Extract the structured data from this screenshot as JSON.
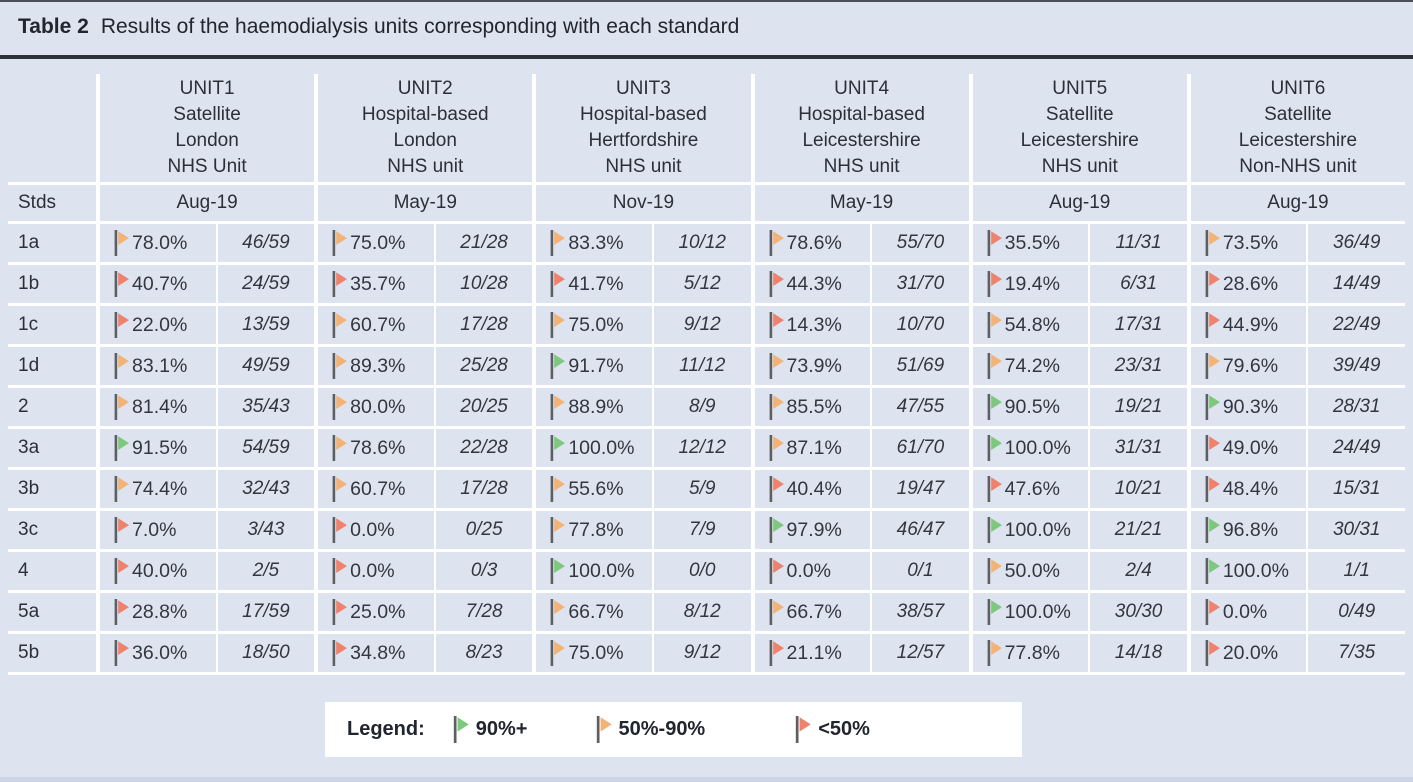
{
  "title": {
    "tag": "Table 2",
    "text": "Results of the haemodialysis units corresponding with each standard"
  },
  "stds_header": "Stds",
  "units": [
    {
      "header": "UNIT1\nSatellite\nLondon\nNHS Unit",
      "date": "Aug-19"
    },
    {
      "header": "UNIT2\nHospital-based\nLondon\nNHS unit",
      "date": "May-19"
    },
    {
      "header": "UNIT3\nHospital-based\nHertfordshire\nNHS unit",
      "date": "Nov-19"
    },
    {
      "header": "UNIT4\nHospital-based\nLeicestershire\nNHS unit",
      "date": "May-19"
    },
    {
      "header": "UNIT5\nSatellite\nLeicestershire\nNHS unit",
      "date": "Aug-19"
    },
    {
      "header": "UNIT6\nSatellite\nLeicestershire\nNon-NHS unit",
      "date": "Aug-19"
    }
  ],
  "rows": [
    {
      "std": "1a",
      "cells": [
        {
          "flag": "orange",
          "pct": "78.0%",
          "frac": "46/59"
        },
        {
          "flag": "orange",
          "pct": "75.0%",
          "frac": "21/28"
        },
        {
          "flag": "orange",
          "pct": "83.3%",
          "frac": "10/12"
        },
        {
          "flag": "orange",
          "pct": "78.6%",
          "frac": "55/70"
        },
        {
          "flag": "red",
          "pct": "35.5%",
          "frac": "11/31"
        },
        {
          "flag": "orange",
          "pct": "73.5%",
          "frac": "36/49"
        }
      ]
    },
    {
      "std": "1b",
      "cells": [
        {
          "flag": "red",
          "pct": "40.7%",
          "frac": "24/59"
        },
        {
          "flag": "red",
          "pct": "35.7%",
          "frac": "10/28"
        },
        {
          "flag": "red",
          "pct": "41.7%",
          "frac": "5/12"
        },
        {
          "flag": "red",
          "pct": "44.3%",
          "frac": "31/70"
        },
        {
          "flag": "red",
          "pct": "19.4%",
          "frac": "6/31"
        },
        {
          "flag": "red",
          "pct": "28.6%",
          "frac": "14/49"
        }
      ]
    },
    {
      "std": "1c",
      "cells": [
        {
          "flag": "red",
          "pct": "22.0%",
          "frac": "13/59"
        },
        {
          "flag": "orange",
          "pct": "60.7%",
          "frac": "17/28"
        },
        {
          "flag": "orange",
          "pct": "75.0%",
          "frac": "9/12"
        },
        {
          "flag": "red",
          "pct": "14.3%",
          "frac": "10/70"
        },
        {
          "flag": "orange",
          "pct": "54.8%",
          "frac": "17/31"
        },
        {
          "flag": "red",
          "pct": "44.9%",
          "frac": "22/49"
        }
      ]
    },
    {
      "std": "1d",
      "cells": [
        {
          "flag": "orange",
          "pct": "83.1%",
          "frac": "49/59"
        },
        {
          "flag": "orange",
          "pct": "89.3%",
          "frac": "25/28"
        },
        {
          "flag": "green",
          "pct": "91.7%",
          "frac": "11/12"
        },
        {
          "flag": "orange",
          "pct": "73.9%",
          "frac": "51/69"
        },
        {
          "flag": "orange",
          "pct": "74.2%",
          "frac": "23/31"
        },
        {
          "flag": "orange",
          "pct": "79.6%",
          "frac": "39/49"
        }
      ]
    },
    {
      "std": "2",
      "cells": [
        {
          "flag": "orange",
          "pct": "81.4%",
          "frac": "35/43"
        },
        {
          "flag": "orange",
          "pct": "80.0%",
          "frac": "20/25"
        },
        {
          "flag": "orange",
          "pct": "88.9%",
          "frac": "8/9"
        },
        {
          "flag": "orange",
          "pct": "85.5%",
          "frac": "47/55"
        },
        {
          "flag": "green",
          "pct": "90.5%",
          "frac": "19/21"
        },
        {
          "flag": "green",
          "pct": "90.3%",
          "frac": "28/31"
        }
      ]
    },
    {
      "std": "3a",
      "cells": [
        {
          "flag": "green",
          "pct": "91.5%",
          "frac": "54/59"
        },
        {
          "flag": "orange",
          "pct": "78.6%",
          "frac": "22/28"
        },
        {
          "flag": "green",
          "pct": "100.0%",
          "frac": "12/12"
        },
        {
          "flag": "orange",
          "pct": "87.1%",
          "frac": "61/70"
        },
        {
          "flag": "green",
          "pct": "100.0%",
          "frac": "31/31"
        },
        {
          "flag": "red",
          "pct": "49.0%",
          "frac": "24/49"
        }
      ]
    },
    {
      "std": "3b",
      "cells": [
        {
          "flag": "orange",
          "pct": "74.4%",
          "frac": "32/43"
        },
        {
          "flag": "orange",
          "pct": "60.7%",
          "frac": "17/28"
        },
        {
          "flag": "orange",
          "pct": "55.6%",
          "frac": "5/9"
        },
        {
          "flag": "red",
          "pct": "40.4%",
          "frac": "19/47"
        },
        {
          "flag": "red",
          "pct": "47.6%",
          "frac": "10/21"
        },
        {
          "flag": "red",
          "pct": "48.4%",
          "frac": "15/31"
        }
      ]
    },
    {
      "std": "3c",
      "cells": [
        {
          "flag": "red",
          "pct": "7.0%",
          "frac": "3/43"
        },
        {
          "flag": "red",
          "pct": "0.0%",
          "frac": "0/25"
        },
        {
          "flag": "orange",
          "pct": "77.8%",
          "frac": "7/9"
        },
        {
          "flag": "green",
          "pct": "97.9%",
          "frac": "46/47"
        },
        {
          "flag": "green",
          "pct": "100.0%",
          "frac": "21/21"
        },
        {
          "flag": "green",
          "pct": "96.8%",
          "frac": "30/31"
        }
      ]
    },
    {
      "std": "4",
      "cells": [
        {
          "flag": "red",
          "pct": "40.0%",
          "frac": "2/5"
        },
        {
          "flag": "red",
          "pct": "0.0%",
          "frac": "0/3"
        },
        {
          "flag": "green",
          "pct": "100.0%",
          "frac": "0/0"
        },
        {
          "flag": "red",
          "pct": "0.0%",
          "frac": "0/1"
        },
        {
          "flag": "orange",
          "pct": "50.0%",
          "frac": "2/4"
        },
        {
          "flag": "green",
          "pct": "100.0%",
          "frac": "1/1"
        }
      ]
    },
    {
      "std": "5a",
      "cells": [
        {
          "flag": "red",
          "pct": "28.8%",
          "frac": "17/59"
        },
        {
          "flag": "red",
          "pct": "25.0%",
          "frac": "7/28"
        },
        {
          "flag": "orange",
          "pct": "66.7%",
          "frac": "8/12"
        },
        {
          "flag": "orange",
          "pct": "66.7%",
          "frac": "38/57"
        },
        {
          "flag": "green",
          "pct": "100.0%",
          "frac": "30/30"
        },
        {
          "flag": "red",
          "pct": "0.0%",
          "frac": "0/49"
        }
      ]
    },
    {
      "std": "5b",
      "cells": [
        {
          "flag": "red",
          "pct": "36.0%",
          "frac": "18/50"
        },
        {
          "flag": "red",
          "pct": "34.8%",
          "frac": "8/23"
        },
        {
          "flag": "orange",
          "pct": "75.0%",
          "frac": "9/12"
        },
        {
          "flag": "red",
          "pct": "21.1%",
          "frac": "12/57"
        },
        {
          "flag": "orange",
          "pct": "77.8%",
          "frac": "14/18"
        },
        {
          "flag": "red",
          "pct": "20.0%",
          "frac": "7/35"
        }
      ]
    }
  ],
  "legend": {
    "label": "Legend:",
    "items": [
      {
        "flag": "green",
        "label": "90%+"
      },
      {
        "flag": "orange",
        "label": "50%-90%"
      },
      {
        "flag": "red",
        "label": "<50%"
      }
    ]
  },
  "colors": {
    "green": "#7dc87d",
    "orange": "#f4b376",
    "red": "#f0816c",
    "pole": "#5d5f63",
    "cell_bg": "#dde4f0",
    "grid_line": "#ffffff",
    "title_rule": "#2e3137",
    "text": "#2b2f38"
  }
}
